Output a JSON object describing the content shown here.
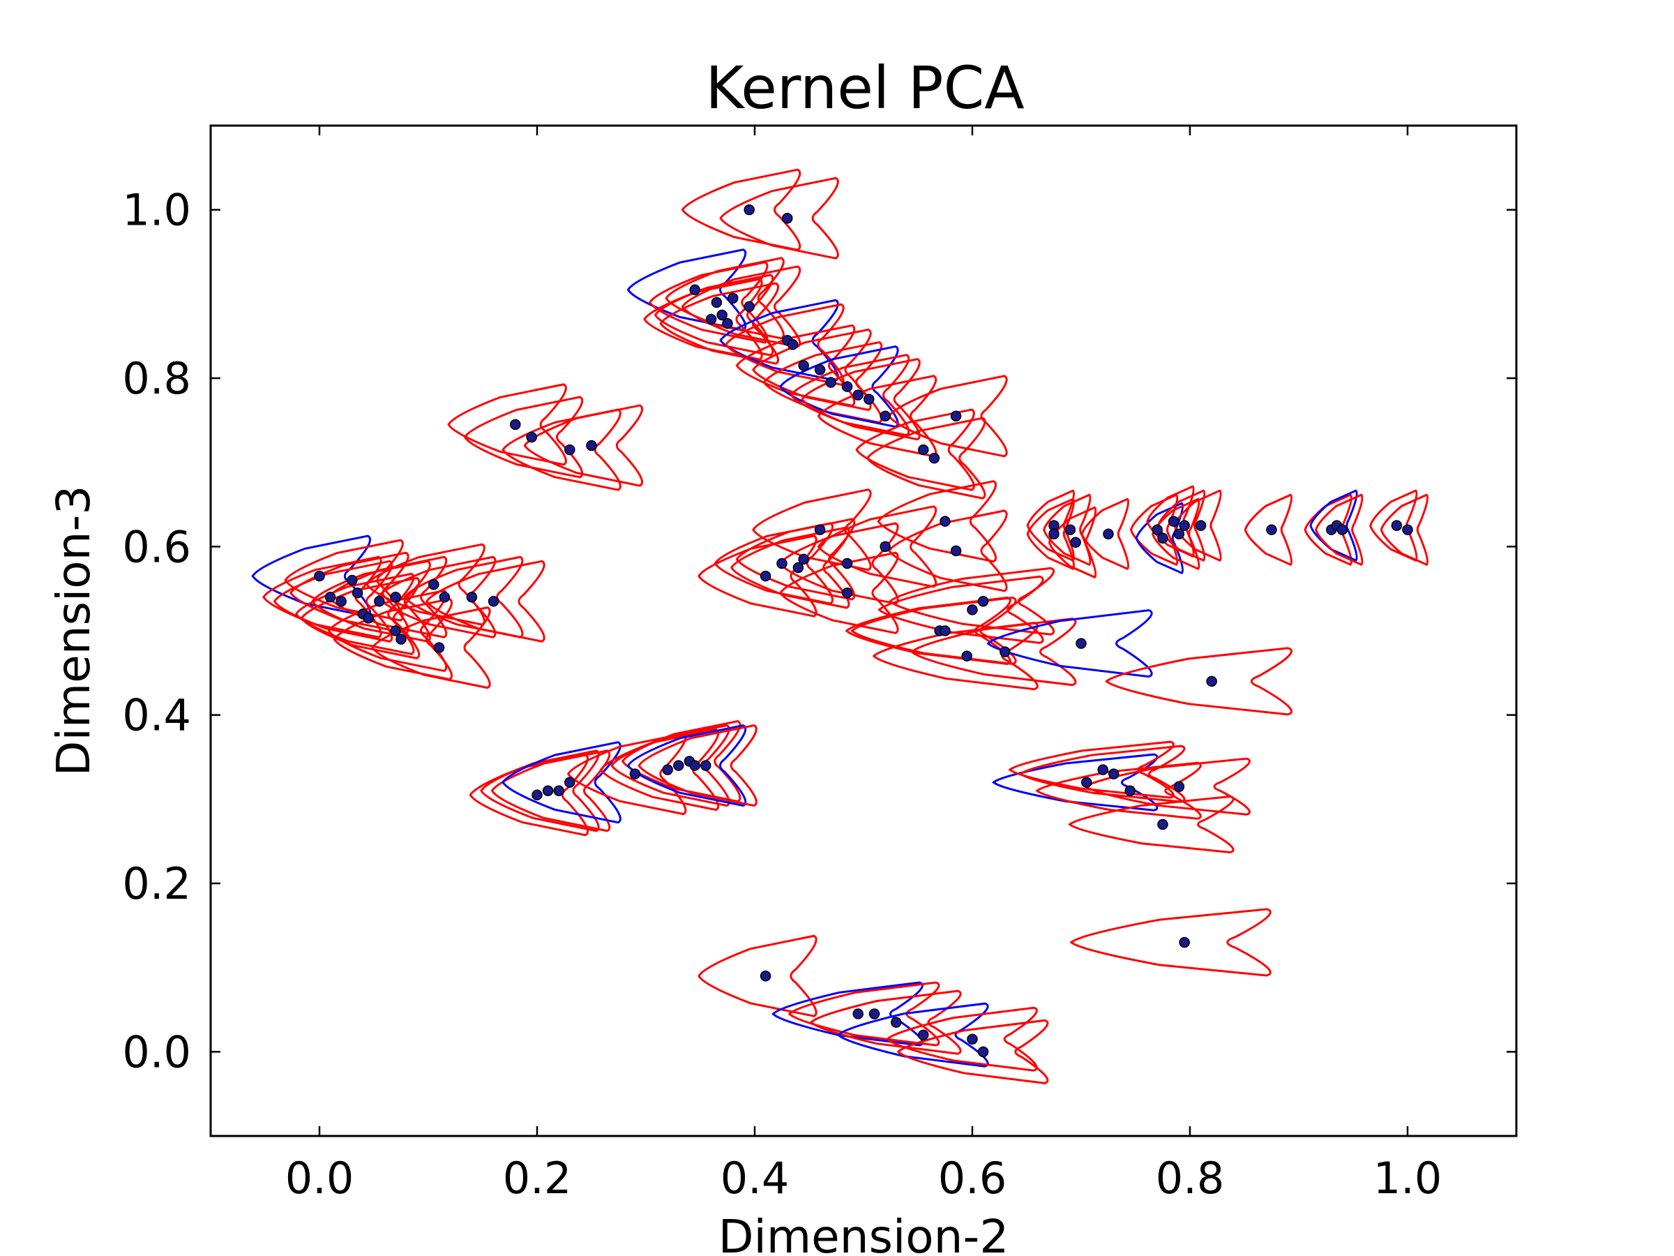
{
  "chart_data": {
    "type": "scatter",
    "title": "Kernel PCA",
    "xlabel": "Dimension-2",
    "ylabel": "Dimension-3",
    "xlim": [
      -0.1,
      1.1
    ],
    "ylim": [
      -0.1,
      1.1
    ],
    "xticks": [
      0.0,
      0.2,
      0.4,
      0.6,
      0.8,
      1.0
    ],
    "yticks": [
      0.0,
      0.2,
      0.4,
      0.6,
      0.8,
      1.0
    ],
    "xtick_labels": [
      "0.0",
      "0.2",
      "0.4",
      "0.6",
      "0.8",
      "1.0"
    ],
    "ytick_labels": [
      "0.0",
      "0.2",
      "0.4",
      "0.6",
      "0.8",
      "1.0"
    ],
    "grid": false,
    "legend": "none",
    "colors": {
      "point": "#1a1a8c",
      "contour_red": "#ff0000",
      "contour_blue": "#0000ff"
    },
    "points": [
      {
        "x": 0.395,
        "y": 1.0,
        "c": "red"
      },
      {
        "x": 0.43,
        "y": 0.99,
        "c": "red"
      },
      {
        "x": 0.345,
        "y": 0.905,
        "c": "blue"
      },
      {
        "x": 0.365,
        "y": 0.89,
        "c": "red"
      },
      {
        "x": 0.38,
        "y": 0.895,
        "c": "red"
      },
      {
        "x": 0.37,
        "y": 0.875,
        "c": "red"
      },
      {
        "x": 0.395,
        "y": 0.885,
        "c": "red"
      },
      {
        "x": 0.36,
        "y": 0.87,
        "c": "red"
      },
      {
        "x": 0.375,
        "y": 0.865,
        "c": "red"
      },
      {
        "x": 0.43,
        "y": 0.845,
        "c": "blue"
      },
      {
        "x": 0.435,
        "y": 0.84,
        "c": "red"
      },
      {
        "x": 0.445,
        "y": 0.815,
        "c": "red"
      },
      {
        "x": 0.46,
        "y": 0.81,
        "c": "red"
      },
      {
        "x": 0.47,
        "y": 0.795,
        "c": "red"
      },
      {
        "x": 0.485,
        "y": 0.79,
        "c": "blue"
      },
      {
        "x": 0.495,
        "y": 0.78,
        "c": "red"
      },
      {
        "x": 0.505,
        "y": 0.775,
        "c": "red"
      },
      {
        "x": 0.52,
        "y": 0.755,
        "c": "red"
      },
      {
        "x": 0.585,
        "y": 0.755,
        "c": "red"
      },
      {
        "x": 0.555,
        "y": 0.715,
        "c": "red"
      },
      {
        "x": 0.565,
        "y": 0.705,
        "c": "red"
      },
      {
        "x": 0.18,
        "y": 0.745,
        "c": "red"
      },
      {
        "x": 0.195,
        "y": 0.73,
        "c": "red"
      },
      {
        "x": 0.23,
        "y": 0.715,
        "c": "red"
      },
      {
        "x": 0.25,
        "y": 0.72,
        "c": "red"
      },
      {
        "x": 0.0,
        "y": 0.565,
        "c": "blue"
      },
      {
        "x": 0.01,
        "y": 0.54,
        "c": "red"
      },
      {
        "x": 0.02,
        "y": 0.535,
        "c": "red"
      },
      {
        "x": 0.03,
        "y": 0.56,
        "c": "red"
      },
      {
        "x": 0.035,
        "y": 0.545,
        "c": "red"
      },
      {
        "x": 0.04,
        "y": 0.52,
        "c": "red"
      },
      {
        "x": 0.045,
        "y": 0.515,
        "c": "red"
      },
      {
        "x": 0.055,
        "y": 0.535,
        "c": "red"
      },
      {
        "x": 0.07,
        "y": 0.54,
        "c": "red"
      },
      {
        "x": 0.07,
        "y": 0.5,
        "c": "red"
      },
      {
        "x": 0.075,
        "y": 0.49,
        "c": "red"
      },
      {
        "x": 0.105,
        "y": 0.555,
        "c": "red"
      },
      {
        "x": 0.115,
        "y": 0.54,
        "c": "red"
      },
      {
        "x": 0.14,
        "y": 0.54,
        "c": "red"
      },
      {
        "x": 0.16,
        "y": 0.535,
        "c": "red"
      },
      {
        "x": 0.11,
        "y": 0.48,
        "c": "red"
      },
      {
        "x": 0.41,
        "y": 0.565,
        "c": "red"
      },
      {
        "x": 0.425,
        "y": 0.58,
        "c": "red"
      },
      {
        "x": 0.44,
        "y": 0.575,
        "c": "red"
      },
      {
        "x": 0.445,
        "y": 0.585,
        "c": "red"
      },
      {
        "x": 0.46,
        "y": 0.62,
        "c": "red"
      },
      {
        "x": 0.485,
        "y": 0.58,
        "c": "red"
      },
      {
        "x": 0.485,
        "y": 0.545,
        "c": "red"
      },
      {
        "x": 0.52,
        "y": 0.6,
        "c": "red"
      },
      {
        "x": 0.575,
        "y": 0.63,
        "c": "red"
      },
      {
        "x": 0.585,
        "y": 0.595,
        "c": "red"
      },
      {
        "x": 0.61,
        "y": 0.535,
        "c": "red"
      },
      {
        "x": 0.6,
        "y": 0.525,
        "c": "red"
      },
      {
        "x": 0.57,
        "y": 0.5,
        "c": "red"
      },
      {
        "x": 0.575,
        "y": 0.5,
        "c": "red"
      },
      {
        "x": 0.595,
        "y": 0.47,
        "c": "red"
      },
      {
        "x": 0.63,
        "y": 0.475,
        "c": "red"
      },
      {
        "x": 0.7,
        "y": 0.485,
        "c": "blue"
      },
      {
        "x": 0.82,
        "y": 0.44,
        "c": "red"
      },
      {
        "x": 0.675,
        "y": 0.625,
        "c": "red"
      },
      {
        "x": 0.675,
        "y": 0.615,
        "c": "red"
      },
      {
        "x": 0.69,
        "y": 0.62,
        "c": "red"
      },
      {
        "x": 0.695,
        "y": 0.605,
        "c": "red"
      },
      {
        "x": 0.725,
        "y": 0.615,
        "c": "red"
      },
      {
        "x": 0.77,
        "y": 0.62,
        "c": "red"
      },
      {
        "x": 0.775,
        "y": 0.61,
        "c": "blue"
      },
      {
        "x": 0.785,
        "y": 0.63,
        "c": "red"
      },
      {
        "x": 0.79,
        "y": 0.615,
        "c": "red"
      },
      {
        "x": 0.795,
        "y": 0.625,
        "c": "red"
      },
      {
        "x": 0.81,
        "y": 0.625,
        "c": "red"
      },
      {
        "x": 0.875,
        "y": 0.62,
        "c": "red"
      },
      {
        "x": 0.93,
        "y": 0.62,
        "c": "red"
      },
      {
        "x": 0.935,
        "y": 0.625,
        "c": "blue"
      },
      {
        "x": 0.94,
        "y": 0.62,
        "c": "red"
      },
      {
        "x": 0.99,
        "y": 0.625,
        "c": "red"
      },
      {
        "x": 1.0,
        "y": 0.62,
        "c": "red"
      },
      {
        "x": 0.2,
        "y": 0.305,
        "c": "red"
      },
      {
        "x": 0.21,
        "y": 0.31,
        "c": "red"
      },
      {
        "x": 0.22,
        "y": 0.31,
        "c": "red"
      },
      {
        "x": 0.23,
        "y": 0.32,
        "c": "blue"
      },
      {
        "x": 0.29,
        "y": 0.33,
        "c": "red"
      },
      {
        "x": 0.32,
        "y": 0.335,
        "c": "red"
      },
      {
        "x": 0.33,
        "y": 0.34,
        "c": "red"
      },
      {
        "x": 0.34,
        "y": 0.345,
        "c": "red"
      },
      {
        "x": 0.345,
        "y": 0.34,
        "c": "blue"
      },
      {
        "x": 0.355,
        "y": 0.34,
        "c": "red"
      },
      {
        "x": 0.705,
        "y": 0.32,
        "c": "blue"
      },
      {
        "x": 0.72,
        "y": 0.335,
        "c": "red"
      },
      {
        "x": 0.73,
        "y": 0.33,
        "c": "red"
      },
      {
        "x": 0.745,
        "y": 0.31,
        "c": "red"
      },
      {
        "x": 0.79,
        "y": 0.315,
        "c": "red"
      },
      {
        "x": 0.775,
        "y": 0.27,
        "c": "red"
      },
      {
        "x": 0.795,
        "y": 0.13,
        "c": "red"
      },
      {
        "x": 0.41,
        "y": 0.09,
        "c": "red"
      },
      {
        "x": 0.495,
        "y": 0.045,
        "c": "blue"
      },
      {
        "x": 0.51,
        "y": 0.045,
        "c": "red"
      },
      {
        "x": 0.53,
        "y": 0.035,
        "c": "red"
      },
      {
        "x": 0.555,
        "y": 0.02,
        "c": "blue"
      },
      {
        "x": 0.6,
        "y": 0.015,
        "c": "red"
      },
      {
        "x": 0.61,
        "y": 0.0,
        "c": "red"
      }
    ]
  }
}
